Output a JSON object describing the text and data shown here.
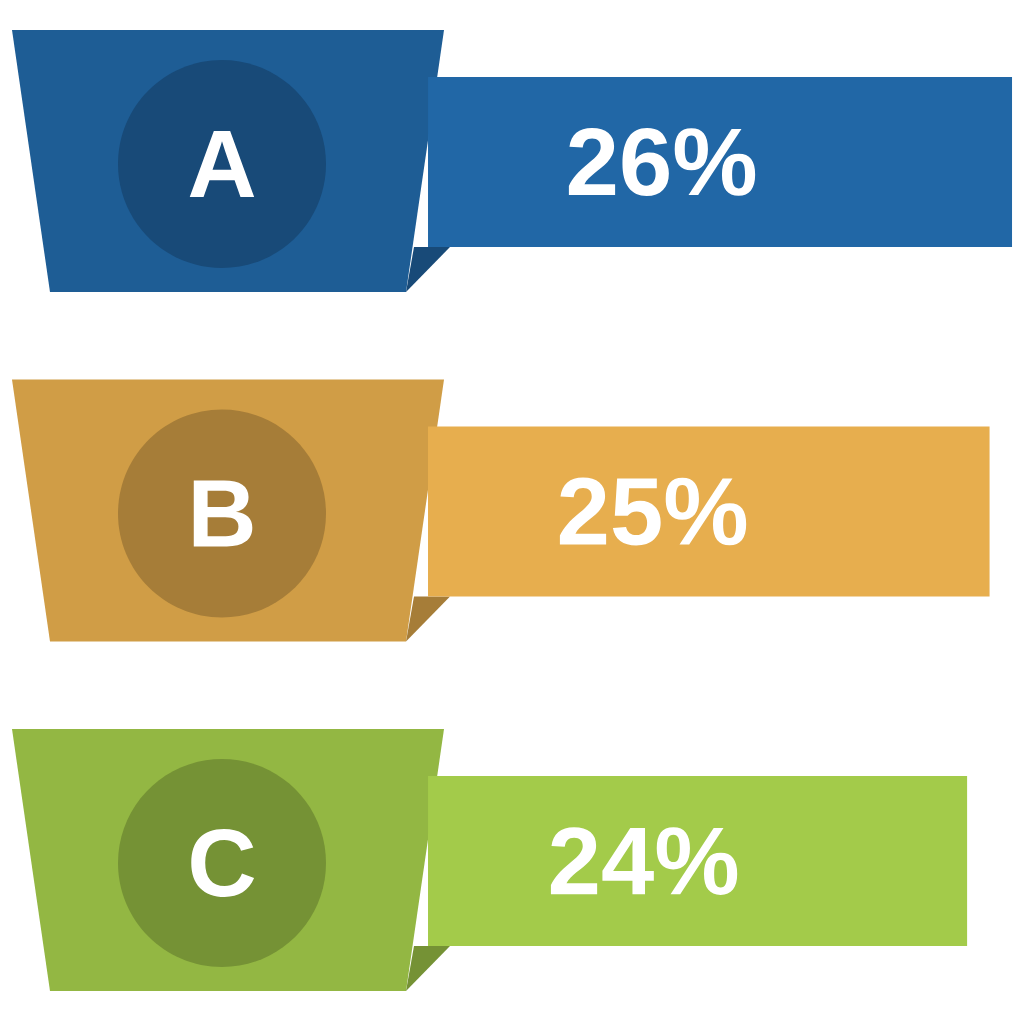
{
  "chart_data": {
    "type": "bar",
    "orientation": "horizontal",
    "categories": [
      "A",
      "B",
      "C"
    ],
    "values": [
      26,
      25,
      24
    ],
    "value_labels": [
      "26%",
      "25%",
      "24%"
    ],
    "colors": [
      "#2167a6",
      "#e7ae4e",
      "#a3cb4a"
    ]
  }
}
